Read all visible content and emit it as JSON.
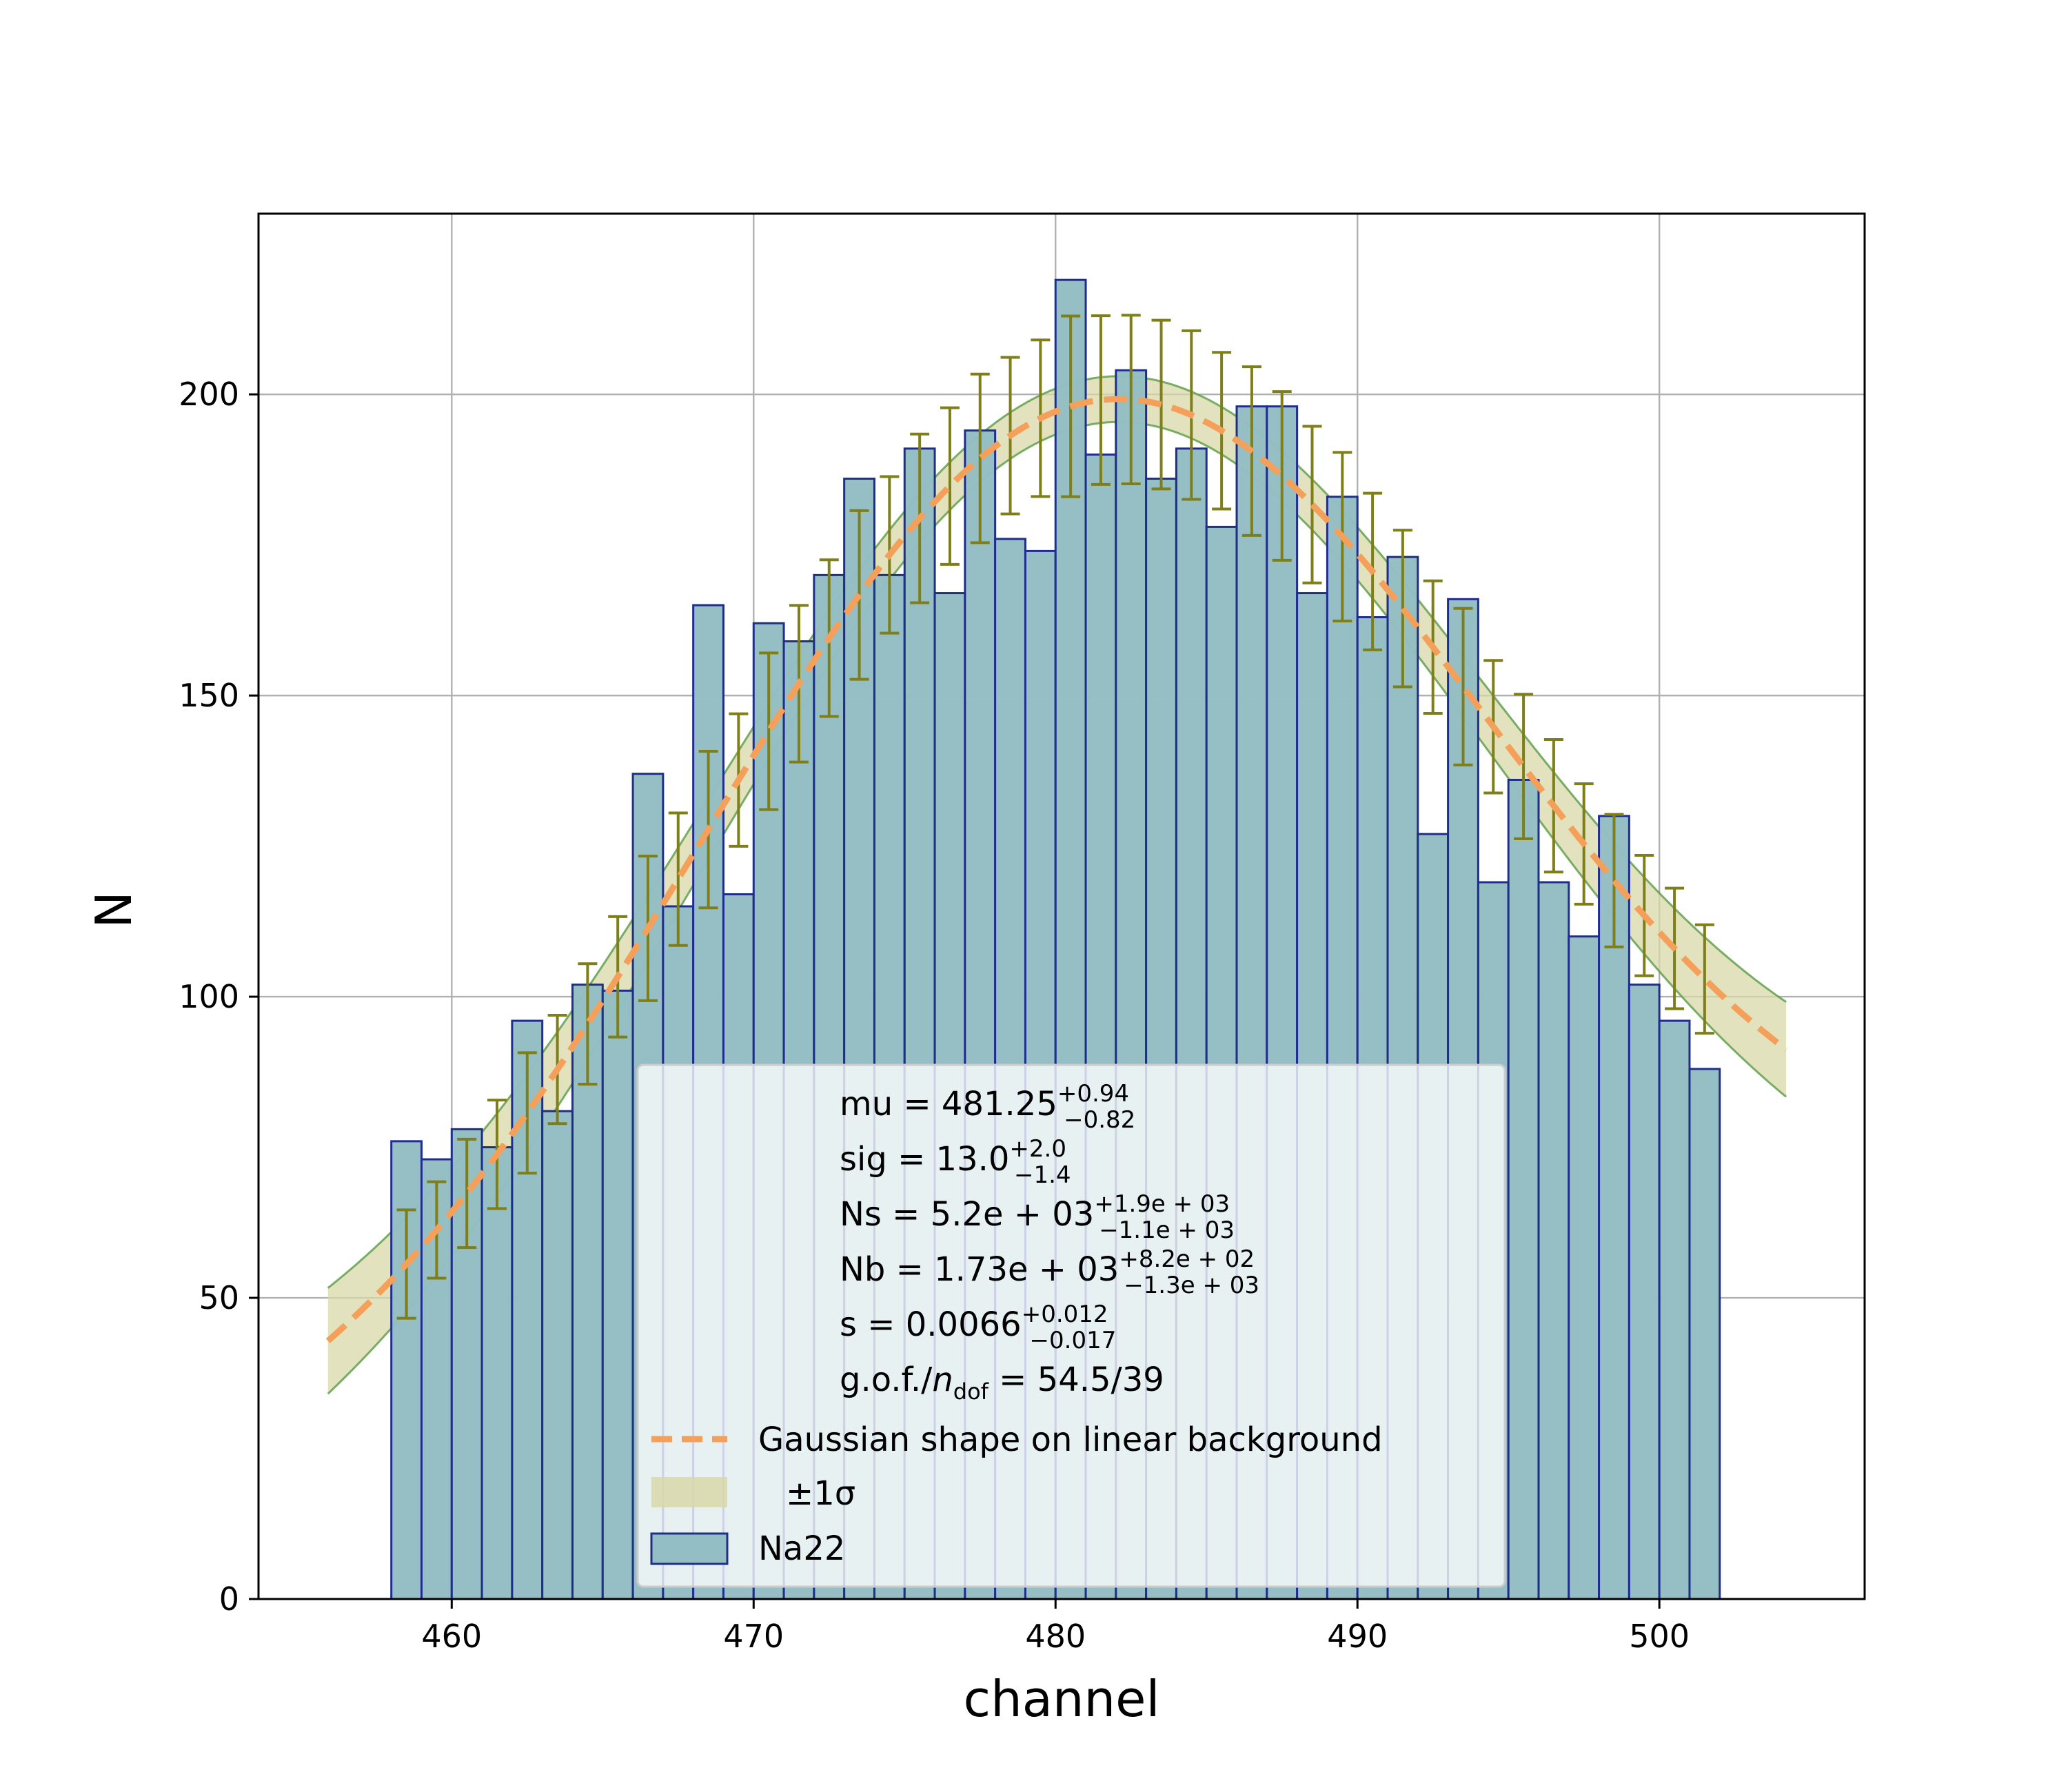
{
  "chart_data": {
    "type": "bar",
    "xlabel": "channel",
    "ylabel": "N",
    "xlim": [
      453.6,
      506.8
    ],
    "ylim": [
      0,
      230
    ],
    "grid": true,
    "x_ticks": [
      460,
      470,
      480,
      490,
      500
    ],
    "y_ticks": [
      0,
      50,
      100,
      150,
      200
    ],
    "bins": {
      "name": "Na22",
      "edges": [
        458,
        459,
        460,
        461,
        462,
        463,
        464,
        465,
        466,
        467,
        468,
        469,
        470,
        471,
        472,
        473,
        474,
        475,
        476,
        477,
        478,
        479,
        480,
        481,
        482,
        483,
        484,
        485,
        486,
        487,
        488,
        489,
        490,
        491,
        492,
        493,
        494,
        495,
        496,
        497,
        498,
        499,
        500,
        501,
        502
      ],
      "counts": [
        76,
        73,
        78,
        75,
        96,
        81,
        102,
        101,
        137,
        115,
        165,
        117,
        162,
        159,
        170,
        186,
        170,
        191,
        167,
        194,
        176,
        174,
        219,
        190,
        204,
        186,
        191,
        178,
        198,
        198,
        167,
        183,
        163,
        173,
        127,
        166,
        119,
        136,
        119,
        110,
        130,
        102,
        96,
        88
      ],
      "errors": [
        9,
        8,
        9,
        9,
        10,
        9,
        10,
        10,
        12,
        11,
        13,
        11,
        13,
        13,
        13,
        14,
        13,
        14,
        13,
        14,
        13,
        13,
        15,
        14,
        14,
        14,
        14,
        13,
        14,
        14,
        13,
        14,
        13,
        13,
        11,
        13,
        11,
        12,
        11,
        10,
        11,
        10,
        10,
        9
      ],
      "fill_color": "#93bec3",
      "edge_color": "#1f2e8c",
      "error_color": "#7f7f1a"
    },
    "fit": {
      "name": "Gaussian shape on linear background",
      "color": "#f5a05a",
      "mu": 481.25,
      "sigma": 13.0,
      "Ns": 5200,
      "Nb": 1730,
      "s": 0.0066,
      "x_range": [
        455.9,
        504.2
      ]
    },
    "band": {
      "name": "±1σ",
      "fill_color": "#d8d8a8",
      "edge_color": "#5a9c45"
    },
    "legend": {
      "placement": "lower center",
      "params": [
        {
          "name": "mu",
          "value": "481.25",
          "plus": "+0.94",
          "minus": "−0.82"
        },
        {
          "name": "sig",
          "value": "13.0",
          "plus": "+2.0",
          "minus": "−1.4"
        },
        {
          "name": "Ns",
          "value": "5.2e + 03",
          "plus": "+1.9e + 03",
          "minus": "−1.1e + 03"
        },
        {
          "name": "Nb",
          "value": "1.73e + 03",
          "plus": "+8.2e + 02",
          "minus": "−1.3e + 03"
        },
        {
          "name": "s",
          "value": "0.0066",
          "plus": "+0.012",
          "minus": "−0.017"
        }
      ],
      "gof_label": "g.o.f./",
      "gof_n": "n",
      "gof_sub": "dof",
      "gof_value": " = 54.5/39",
      "fit_label": "Gaussian shape on linear background",
      "band_label": "±1σ",
      "hist_label": "Na22"
    }
  }
}
